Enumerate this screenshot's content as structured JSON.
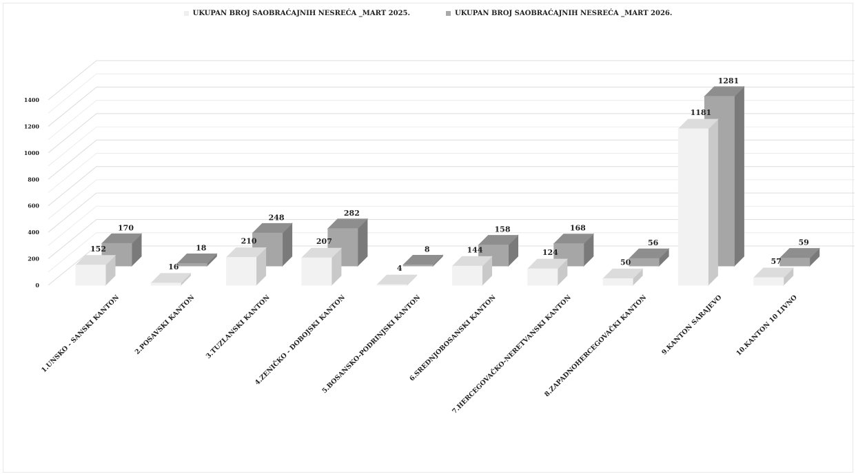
{
  "chart_data": {
    "type": "bar",
    "title": "",
    "xlabel": "",
    "ylabel": "",
    "ylim": [
      0,
      1400
    ],
    "yticks": [
      0,
      200,
      400,
      600,
      800,
      1000,
      1200,
      1400
    ],
    "grid": true,
    "legend_position": "top",
    "categories": [
      "1.UNSKO - SANSKI KANTON",
      "2.POSAVSKI KANTON",
      "3.TUZLANSKI KANTON",
      "4.ZENIČKO - DOBOJSKI KANTON",
      "5.BOSANSKO-PODRINJSKI KANTON",
      "6.SREDNJOBOSANSKI KANTON",
      "7.HERCEGOVAČKO-NERETVANSKI KANTON",
      "8.ZAPADNOHERCEGOVAČKI KANTON",
      "9.KANTON SARAJEVO",
      "10.KANTON 10 LIVNO"
    ],
    "series": [
      {
        "name": "UKUPAN BROJ  SAOBRAĆAJNIH NESREĆA _MART 2025.",
        "color": "#efefef",
        "values": [
          152,
          16,
          210,
          207,
          4,
          144,
          124,
          50,
          1181,
          57
        ]
      },
      {
        "name": "UKUPAN BROJ  SAOBRAĆAJNIH NESREĆA _MART 2026.",
        "color": "#a9a9a9",
        "values": [
          170,
          18,
          248,
          282,
          8,
          158,
          168,
          56,
          1281,
          59
        ]
      }
    ]
  }
}
